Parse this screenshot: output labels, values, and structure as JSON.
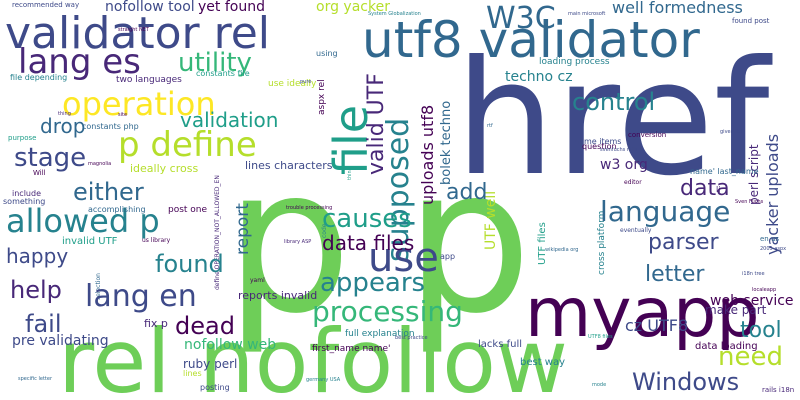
{
  "palette": {
    "dark_purple": "#440154",
    "purple": "#482878",
    "indigo": "#3e4a89",
    "blue": "#31688e",
    "teal": "#26828e",
    "green_teal": "#1f9e89",
    "green": "#35b779",
    "light_green": "#6ece58",
    "lime": "#b5de2b",
    "yellow": "#fde725"
  },
  "words": [
    {
      "text": "p"
    },
    {
      "text": "p"
    },
    {
      "text": "href"
    },
    {
      "text": "rel nofollow"
    },
    {
      "text": "myapp"
    },
    {
      "text": "utf8 validator"
    },
    {
      "text": "validator rel"
    },
    {
      "text": "file"
    },
    {
      "text": "lang es"
    },
    {
      "text": "operation"
    },
    {
      "text": "p define"
    },
    {
      "text": "use"
    },
    {
      "text": "language"
    },
    {
      "text": "allowed p"
    },
    {
      "text": "lang en"
    },
    {
      "text": "processing"
    },
    {
      "text": "W3C"
    },
    {
      "text": "utility"
    },
    {
      "text": "stage"
    },
    {
      "text": "either"
    },
    {
      "text": "found"
    },
    {
      "text": "causes"
    },
    {
      "text": "appears"
    },
    {
      "text": "Windows"
    },
    {
      "text": "control"
    },
    {
      "text": "data"
    },
    {
      "text": "parser"
    },
    {
      "text": "letter"
    },
    {
      "text": "need"
    },
    {
      "text": "tool"
    },
    {
      "text": "dead"
    },
    {
      "text": "fail"
    },
    {
      "text": "help"
    },
    {
      "text": "supposed"
    },
    {
      "text": "valid UTF"
    },
    {
      "text": "data files"
    },
    {
      "text": "add"
    },
    {
      "text": "validation"
    },
    {
      "text": "drop"
    },
    {
      "text": "report"
    },
    {
      "text": "well formedness"
    },
    {
      "text": "happy"
    },
    {
      "text": "yet found"
    },
    {
      "text": "org yacker"
    },
    {
      "text": "nofollow tool"
    },
    {
      "text": "uploads utf8"
    },
    {
      "text": "bolek techno"
    },
    {
      "text": "UTF well"
    },
    {
      "text": "web service"
    },
    {
      "text": "cz UTF8"
    },
    {
      "text": "nofollow web"
    },
    {
      "text": "pre validating"
    },
    {
      "text": "yacker uploads"
    },
    {
      "text": "perl script"
    },
    {
      "text": "w3 org"
    },
    {
      "text": "techno cz"
    },
    {
      "text": "data loading"
    },
    {
      "text": "make part"
    },
    {
      "text": "fix p"
    },
    {
      "text": "ruby perl"
    },
    {
      "text": "reports invalid"
    },
    {
      "text": "lines characters"
    },
    {
      "text": "ideally cross"
    },
    {
      "text": "invalid UTF"
    },
    {
      "text": "UTF files"
    },
    {
      "text": "cross platform"
    },
    {
      "text": "full explanation"
    },
    {
      "text": "best way"
    },
    {
      "text": "lacks full"
    },
    {
      "text": "first_name name'"
    },
    {
      "text": "name' last_name"
    },
    {
      "text": "loading process"
    },
    {
      "text": "name items"
    },
    {
      "text": "question"
    },
    {
      "text": "conversion"
    },
    {
      "text": "two languages"
    },
    {
      "text": "constants file"
    },
    {
      "text": "constants php"
    },
    {
      "text": "use ideally"
    },
    {
      "text": "aspx rel"
    },
    {
      "text": "recommended way"
    },
    {
      "text": "file depending"
    },
    {
      "text": "purpose"
    },
    {
      "text": "include"
    },
    {
      "text": "something"
    },
    {
      "text": "accomplishing"
    },
    {
      "text": "post one"
    },
    {
      "text": "define OPERATION_NOT_ALLOWED_EN"
    },
    {
      "text": "posting"
    },
    {
      "text": "lines"
    },
    {
      "text": "li"
    },
    {
      "text": "en us"
    },
    {
      "text": "rails i18n"
    },
    {
      "text": "found post"
    },
    {
      "text": "app"
    },
    {
      "text": "using"
    },
    {
      "text": "Will"
    },
    {
      "text": "yaml"
    },
    {
      "text": "selection"
    },
    {
      "text": "us library"
    },
    {
      "text": "editor"
    },
    {
      "text": "eventually"
    },
    {
      "text": "code"
    },
    {
      "text": "think"
    },
    {
      "text": "System Globalization"
    },
    {
      "text": "svenfuchs rails"
    },
    {
      "text": "wikipedia org"
    },
    {
      "text": "i18n tree"
    },
    {
      "text": "localeapp"
    },
    {
      "text": "Sven Fuchs"
    },
    {
      "text": "given list"
    },
    {
      "text": "straight NET"
    },
    {
      "text": "main microsoft"
    },
    {
      "text": "germany USA"
    },
    {
      "text": "library ASP"
    },
    {
      "text": "UTF8 files"
    },
    {
      "text": "best practice"
    },
    {
      "text": "trouble processing"
    },
    {
      "text": "2005 aspx"
    },
    {
      "text": "specific letter"
    },
    {
      "text": "magnolia"
    },
    {
      "text": "pure"
    },
    {
      "text": "mode"
    },
    {
      "text": "rtf"
    },
    {
      "text": "site"
    },
    {
      "text": "thing"
    }
  ]
}
